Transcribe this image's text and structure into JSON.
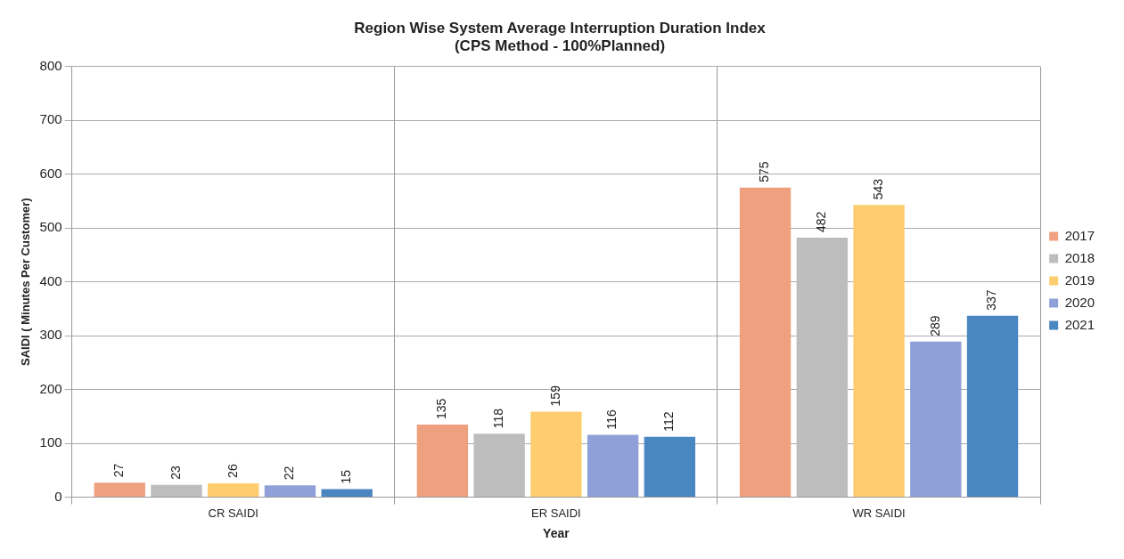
{
  "chart_data": {
    "type": "bar",
    "title": "Region Wise System Average Interruption Duration Index",
    "subtitle": "(CPS Method - 100%Planned)",
    "xlabel": "Year",
    "ylabel": "SAIDI ( Minutes Per Customer)",
    "categories": [
      "CR SAIDI",
      "ER SAIDI",
      "WR SAIDI"
    ],
    "series": [
      {
        "name": "2017",
        "color": "#efa07f",
        "values": [
          27,
          135,
          575
        ]
      },
      {
        "name": "2018",
        "color": "#bdbdbd",
        "values": [
          23,
          118,
          482
        ]
      },
      {
        "name": "2019",
        "color": "#fdcd70",
        "values": [
          26,
          159,
          543
        ]
      },
      {
        "name": "2020",
        "color": "#8fa0d8",
        "values": [
          22,
          116,
          289
        ]
      },
      {
        "name": "2021",
        "color": "#4a86c0",
        "values": [
          15,
          112,
          337
        ]
      }
    ],
    "ylim": [
      0,
      800
    ],
    "yticks": [
      0,
      100,
      200,
      300,
      400,
      500,
      600,
      700,
      800
    ],
    "grid": true,
    "legend": "right",
    "data_labels": true
  }
}
